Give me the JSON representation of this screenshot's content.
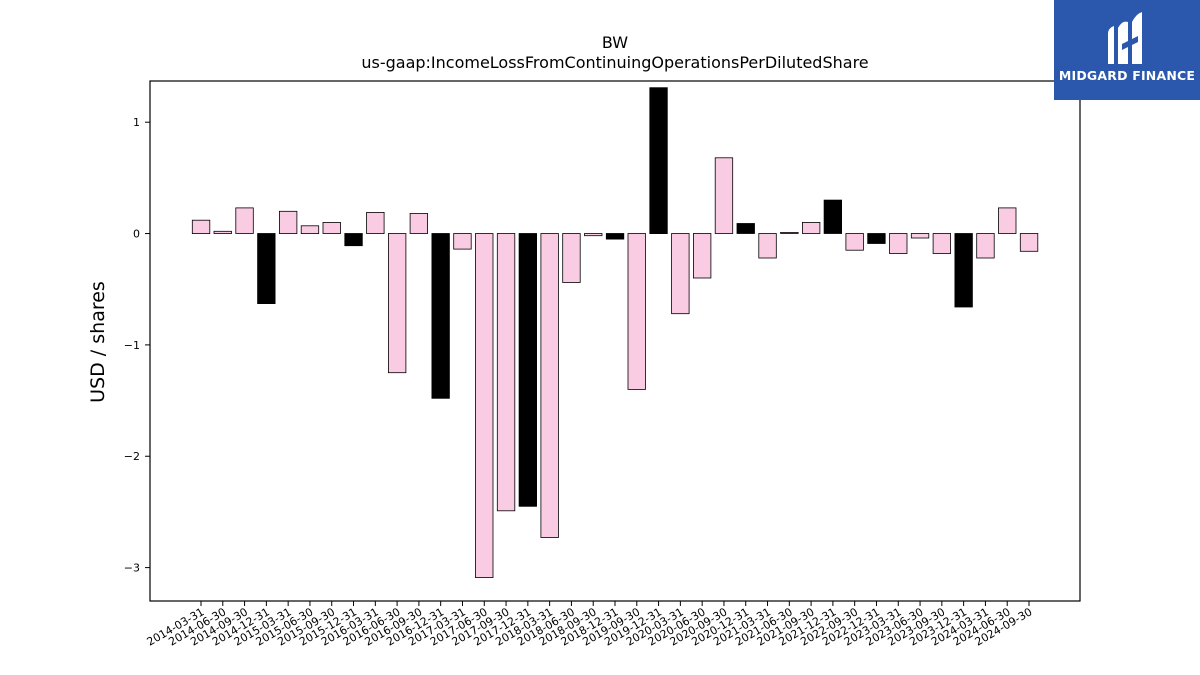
{
  "brand": {
    "name": "MIDGARD FINANCE",
    "bg_color": "#2b58ad",
    "icon": "midgard-logo-icon"
  },
  "chart_data": {
    "type": "bar",
    "title": "BW",
    "subtitle": "us-gaap:IncomeLossFromContinuingOperationsPerDilutedShare",
    "xlabel": "",
    "ylabel": "USD / shares",
    "ylim": [
      -3.3,
      1.37
    ],
    "yticks": [
      {
        "value": 1,
        "label": "1"
      },
      {
        "value": 0,
        "label": "0"
      },
      {
        "value": -1,
        "label": "−1"
      },
      {
        "value": -2,
        "label": "−2"
      },
      {
        "value": -3,
        "label": "−3"
      }
    ],
    "grid": false,
    "legend": "none",
    "colors": {
      "quarter": "#f9cce3",
      "annual": "#000000",
      "edge": "#000000"
    },
    "categories": [
      "2014-03-31",
      "2014-06-30",
      "2014-09-30",
      "2014-12-31",
      "2015-03-31",
      "2015-06-30",
      "2015-09-30",
      "2015-12-31",
      "2016-03-31",
      "2016-06-30",
      "2016-09-30",
      "2016-12-31",
      "2017-03-31",
      "2017-06-30",
      "2017-09-30",
      "2017-12-31",
      "2018-03-31",
      "2018-06-30",
      "2018-09-30",
      "2018-12-31",
      "2019-09-30",
      "2019-12-31",
      "2020-03-31",
      "2020-06-30",
      "2020-09-30",
      "2020-12-31",
      "2021-03-31",
      "2021-06-30",
      "2021-09-30",
      "2021-12-31",
      "2022-09-30",
      "2022-12-31",
      "2023-03-31",
      "2023-06-30",
      "2023-09-30",
      "2023-12-31",
      "2024-03-31",
      "2024-06-30",
      "2024-09-30"
    ],
    "values": [
      0.12,
      0.02,
      0.23,
      -0.63,
      0.2,
      0.07,
      0.1,
      -0.11,
      0.19,
      -1.25,
      0.18,
      -1.48,
      -0.14,
      -3.09,
      -2.49,
      -2.45,
      -2.73,
      -0.44,
      -0.02,
      -0.05,
      -1.4,
      1.31,
      -0.72,
      -0.4,
      0.68,
      0.09,
      -0.22,
      0.01,
      0.1,
      0.3,
      -0.15,
      -0.09,
      -0.18,
      -0.04,
      -0.18,
      -0.66,
      -0.22,
      0.23,
      -0.16
    ],
    "annual": [
      false,
      false,
      false,
      true,
      false,
      false,
      false,
      true,
      false,
      false,
      false,
      true,
      false,
      false,
      false,
      true,
      false,
      false,
      false,
      true,
      false,
      true,
      false,
      false,
      false,
      true,
      false,
      false,
      false,
      true,
      false,
      true,
      false,
      false,
      false,
      true,
      false,
      false,
      false
    ]
  }
}
